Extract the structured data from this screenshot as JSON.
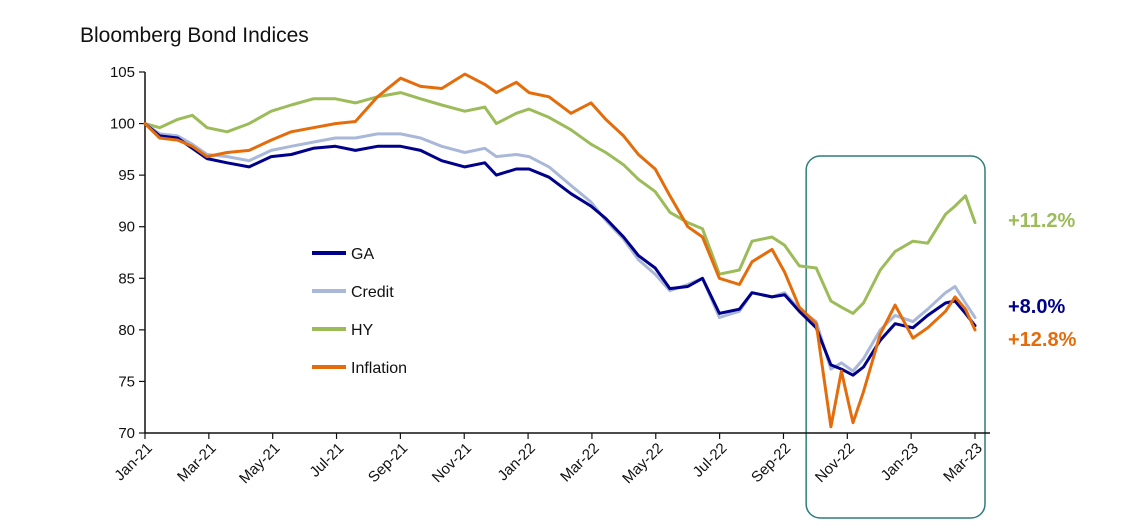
{
  "chart_data": {
    "type": "line",
    "title": "Bloomberg Bond Indices",
    "xlabel": "",
    "ylabel": "",
    "ylim": [
      70,
      105
    ],
    "yticks": [
      70,
      75,
      80,
      85,
      90,
      95,
      100,
      105
    ],
    "xticks": [
      "Jan-21",
      "Mar-21",
      "May-21",
      "Jul-21",
      "Sep-21",
      "Nov-21",
      "Jan-22",
      "Mar-22",
      "May-22",
      "Jul-22",
      "Sep-22",
      "Nov-22",
      "Jan-23",
      "Mar-23"
    ],
    "xlim": [
      "2021-01-01",
      "2023-03-01"
    ],
    "grid": false,
    "legend_position": "center-left",
    "highlight_box": {
      "from": "2022-10-01",
      "to": "2023-03-31"
    },
    "series": [
      {
        "name": "GA",
        "color": "#00008b",
        "end_label": "+8.0%",
        "points": [
          [
            "2021-01-01",
            100
          ],
          [
            "2021-01-15",
            98.8
          ],
          [
            "2021-02-01",
            98.6
          ],
          [
            "2021-02-15",
            97.6
          ],
          [
            "2021-03-01",
            96.6
          ],
          [
            "2021-03-20",
            96.2
          ],
          [
            "2021-04-10",
            95.8
          ],
          [
            "2021-05-01",
            96.8
          ],
          [
            "2021-05-20",
            97.0
          ],
          [
            "2021-06-10",
            97.6
          ],
          [
            "2021-07-01",
            97.8
          ],
          [
            "2021-07-20",
            97.4
          ],
          [
            "2021-08-10",
            97.8
          ],
          [
            "2021-09-01",
            97.8
          ],
          [
            "2021-09-20",
            97.4
          ],
          [
            "2021-10-10",
            96.4
          ],
          [
            "2021-11-01",
            95.8
          ],
          [
            "2021-11-20",
            96.2
          ],
          [
            "2021-12-01",
            95.0
          ],
          [
            "2021-12-20",
            95.6
          ],
          [
            "2022-01-01",
            95.6
          ],
          [
            "2022-01-20",
            94.8
          ],
          [
            "2022-02-10",
            93.2
          ],
          [
            "2022-03-01",
            92.0
          ],
          [
            "2022-03-15",
            90.8
          ],
          [
            "2022-04-01",
            89.0
          ],
          [
            "2022-04-15",
            87.2
          ],
          [
            "2022-05-01",
            86.0
          ],
          [
            "2022-05-15",
            84.0
          ],
          [
            "2022-06-01",
            84.2
          ],
          [
            "2022-06-15",
            85.0
          ],
          [
            "2022-07-01",
            81.6
          ],
          [
            "2022-07-20",
            82.0
          ],
          [
            "2022-08-01",
            83.6
          ],
          [
            "2022-08-20",
            83.2
          ],
          [
            "2022-09-01",
            83.4
          ],
          [
            "2022-09-15",
            81.8
          ],
          [
            "2022-10-01",
            80.2
          ],
          [
            "2022-10-15",
            76.6
          ],
          [
            "2022-10-25",
            76.2
          ],
          [
            "2022-11-05",
            75.6
          ],
          [
            "2022-11-15",
            76.4
          ],
          [
            "2022-12-01",
            79.0
          ],
          [
            "2022-12-15",
            80.6
          ],
          [
            "2023-01-01",
            80.2
          ],
          [
            "2023-01-15",
            81.4
          ],
          [
            "2023-02-01",
            82.6
          ],
          [
            "2023-02-10",
            82.8
          ],
          [
            "2023-02-20",
            81.6
          ],
          [
            "2023-03-01",
            80.4
          ]
        ]
      },
      {
        "name": "Credit",
        "color": "#a9b8d8",
        "end_label": "",
        "points": [
          [
            "2021-01-01",
            100
          ],
          [
            "2021-01-15",
            99.0
          ],
          [
            "2021-02-01",
            98.8
          ],
          [
            "2021-02-15",
            98.0
          ],
          [
            "2021-03-01",
            97.0
          ],
          [
            "2021-03-20",
            96.8
          ],
          [
            "2021-04-10",
            96.4
          ],
          [
            "2021-05-01",
            97.4
          ],
          [
            "2021-05-20",
            97.8
          ],
          [
            "2021-06-10",
            98.2
          ],
          [
            "2021-07-01",
            98.6
          ],
          [
            "2021-07-20",
            98.6
          ],
          [
            "2021-08-10",
            99.0
          ],
          [
            "2021-09-01",
            99.0
          ],
          [
            "2021-09-20",
            98.6
          ],
          [
            "2021-10-10",
            97.8
          ],
          [
            "2021-11-01",
            97.2
          ],
          [
            "2021-11-20",
            97.6
          ],
          [
            "2021-12-01",
            96.8
          ],
          [
            "2021-12-20",
            97.0
          ],
          [
            "2022-01-01",
            96.8
          ],
          [
            "2022-01-20",
            95.8
          ],
          [
            "2022-02-10",
            94.0
          ],
          [
            "2022-03-01",
            92.4
          ],
          [
            "2022-03-15",
            90.6
          ],
          [
            "2022-04-01",
            88.8
          ],
          [
            "2022-04-15",
            86.8
          ],
          [
            "2022-05-01",
            85.4
          ],
          [
            "2022-05-15",
            83.8
          ],
          [
            "2022-06-01",
            84.4
          ],
          [
            "2022-06-15",
            85.0
          ],
          [
            "2022-07-01",
            81.2
          ],
          [
            "2022-07-20",
            81.8
          ],
          [
            "2022-08-01",
            83.6
          ],
          [
            "2022-08-20",
            83.2
          ],
          [
            "2022-09-01",
            83.6
          ],
          [
            "2022-09-15",
            82.0
          ],
          [
            "2022-10-01",
            80.8
          ],
          [
            "2022-10-15",
            76.2
          ],
          [
            "2022-10-25",
            76.8
          ],
          [
            "2022-11-05",
            76.0
          ],
          [
            "2022-11-15",
            77.2
          ],
          [
            "2022-12-01",
            80.0
          ],
          [
            "2022-12-15",
            81.4
          ],
          [
            "2023-01-01",
            80.8
          ],
          [
            "2023-01-15",
            82.0
          ],
          [
            "2023-02-01",
            83.6
          ],
          [
            "2023-02-10",
            84.2
          ],
          [
            "2023-02-20",
            82.6
          ],
          [
            "2023-03-01",
            81.2
          ]
        ]
      },
      {
        "name": "HY",
        "color": "#9cbb59",
        "end_label": "+11.2%",
        "points": [
          [
            "2021-01-01",
            100
          ],
          [
            "2021-01-15",
            99.6
          ],
          [
            "2021-02-01",
            100.4
          ],
          [
            "2021-02-15",
            100.8
          ],
          [
            "2021-03-01",
            99.6
          ],
          [
            "2021-03-20",
            99.2
          ],
          [
            "2021-04-10",
            100.0
          ],
          [
            "2021-05-01",
            101.2
          ],
          [
            "2021-05-20",
            101.8
          ],
          [
            "2021-06-10",
            102.4
          ],
          [
            "2021-07-01",
            102.4
          ],
          [
            "2021-07-20",
            102.0
          ],
          [
            "2021-08-10",
            102.6
          ],
          [
            "2021-09-01",
            103.0
          ],
          [
            "2021-09-20",
            102.4
          ],
          [
            "2021-10-10",
            101.8
          ],
          [
            "2021-11-01",
            101.2
          ],
          [
            "2021-11-20",
            101.6
          ],
          [
            "2021-12-01",
            100.0
          ],
          [
            "2021-12-20",
            101.0
          ],
          [
            "2022-01-01",
            101.4
          ],
          [
            "2022-01-20",
            100.6
          ],
          [
            "2022-02-10",
            99.4
          ],
          [
            "2022-03-01",
            98.0
          ],
          [
            "2022-03-15",
            97.2
          ],
          [
            "2022-04-01",
            96.0
          ],
          [
            "2022-04-15",
            94.6
          ],
          [
            "2022-05-01",
            93.4
          ],
          [
            "2022-05-15",
            91.4
          ],
          [
            "2022-06-01",
            90.4
          ],
          [
            "2022-06-15",
            89.8
          ],
          [
            "2022-07-01",
            85.4
          ],
          [
            "2022-07-20",
            85.8
          ],
          [
            "2022-08-01",
            88.6
          ],
          [
            "2022-08-20",
            89.0
          ],
          [
            "2022-09-01",
            88.2
          ],
          [
            "2022-09-15",
            86.2
          ],
          [
            "2022-10-01",
            86.0
          ],
          [
            "2022-10-15",
            82.8
          ],
          [
            "2022-10-25",
            82.2
          ],
          [
            "2022-11-05",
            81.6
          ],
          [
            "2022-11-15",
            82.6
          ],
          [
            "2022-12-01",
            85.8
          ],
          [
            "2022-12-15",
            87.6
          ],
          [
            "2023-01-01",
            88.6
          ],
          [
            "2023-01-15",
            88.4
          ],
          [
            "2023-02-01",
            91.2
          ],
          [
            "2023-02-10",
            92.0
          ],
          [
            "2023-02-20",
            93.0
          ],
          [
            "2023-03-01",
            90.4
          ]
        ]
      },
      {
        "name": "Inflation",
        "color": "#e46c0a",
        "end_label": "+12.8%",
        "points": [
          [
            "2021-01-01",
            100
          ],
          [
            "2021-01-15",
            98.6
          ],
          [
            "2021-02-01",
            98.4
          ],
          [
            "2021-02-15",
            97.8
          ],
          [
            "2021-03-01",
            96.8
          ],
          [
            "2021-03-20",
            97.2
          ],
          [
            "2021-04-10",
            97.4
          ],
          [
            "2021-05-01",
            98.4
          ],
          [
            "2021-05-20",
            99.2
          ],
          [
            "2021-06-10",
            99.6
          ],
          [
            "2021-07-01",
            100.0
          ],
          [
            "2021-07-20",
            100.2
          ],
          [
            "2021-08-10",
            102.6
          ],
          [
            "2021-09-01",
            104.4
          ],
          [
            "2021-09-20",
            103.6
          ],
          [
            "2021-10-10",
            103.4
          ],
          [
            "2021-11-01",
            104.8
          ],
          [
            "2021-11-20",
            103.8
          ],
          [
            "2021-12-01",
            103.0
          ],
          [
            "2021-12-20",
            104.0
          ],
          [
            "2022-01-01",
            103.0
          ],
          [
            "2022-01-20",
            102.6
          ],
          [
            "2022-02-10",
            101.0
          ],
          [
            "2022-03-01",
            102.0
          ],
          [
            "2022-03-15",
            100.4
          ],
          [
            "2022-04-01",
            98.8
          ],
          [
            "2022-04-15",
            97.0
          ],
          [
            "2022-05-01",
            95.6
          ],
          [
            "2022-05-15",
            93.0
          ],
          [
            "2022-06-01",
            90.0
          ],
          [
            "2022-06-15",
            89.0
          ],
          [
            "2022-07-01",
            85.0
          ],
          [
            "2022-07-20",
            84.4
          ],
          [
            "2022-08-01",
            86.6
          ],
          [
            "2022-08-20",
            87.8
          ],
          [
            "2022-09-01",
            85.6
          ],
          [
            "2022-09-15",
            82.2
          ],
          [
            "2022-10-01",
            80.6
          ],
          [
            "2022-10-15",
            70.6
          ],
          [
            "2022-10-25",
            76.0
          ],
          [
            "2022-11-05",
            71.0
          ],
          [
            "2022-11-15",
            74.0
          ],
          [
            "2022-12-01",
            79.6
          ],
          [
            "2022-12-15",
            82.4
          ],
          [
            "2023-01-01",
            79.2
          ],
          [
            "2023-01-15",
            80.2
          ],
          [
            "2023-02-01",
            81.8
          ],
          [
            "2023-02-10",
            83.2
          ],
          [
            "2023-02-20",
            82.0
          ],
          [
            "2023-03-01",
            80.0
          ]
        ]
      }
    ]
  }
}
